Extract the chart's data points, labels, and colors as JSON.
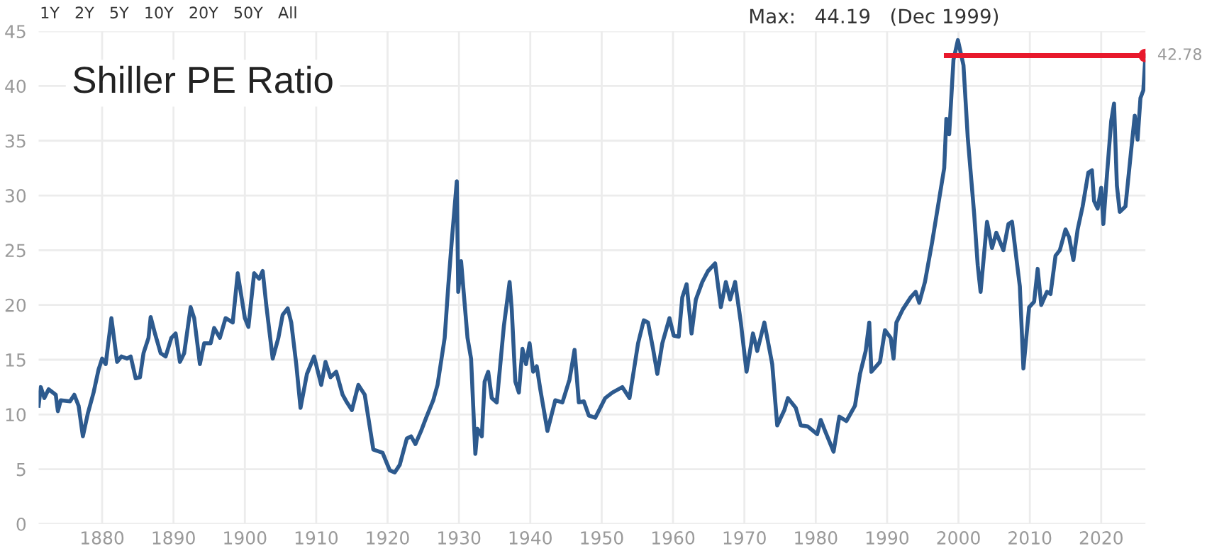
{
  "chart_data": {
    "type": "line",
    "title": "Shiller PE Ratio",
    "xlim": [
      1871.1,
      2026.2
    ],
    "xticks": [
      1880,
      1890,
      1900,
      1910,
      1920,
      1930,
      1940,
      1950,
      1960,
      1970,
      1980,
      1990,
      2000,
      2010,
      2020
    ],
    "ylim": [
      0,
      45
    ],
    "yticks": [
      0,
      5,
      10,
      15,
      20,
      25,
      30,
      35,
      40,
      45
    ],
    "grid": true,
    "legend": false,
    "marker": "none",
    "line_style": "solid",
    "series": [
      {
        "color": "#2d5a8e",
        "x": [
          1871.1,
          1871.4,
          1871.9,
          1872.5,
          1873.5,
          1873.8,
          1874.2,
          1875.5,
          1876.1,
          1876.7,
          1877.3,
          1878.0,
          1878.8,
          1879.5,
          1880.0,
          1880.5,
          1881.3,
          1882.1,
          1882.7,
          1883.5,
          1884.0,
          1884.7,
          1885.3,
          1885.8,
          1886.5,
          1886.8,
          1887.4,
          1888.2,
          1888.9,
          1889.7,
          1890.3,
          1890.9,
          1891.5,
          1892.4,
          1892.9,
          1893.7,
          1894.3,
          1895.2,
          1895.7,
          1896.5,
          1897.3,
          1898.3,
          1899.0,
          1900.0,
          1900.5,
          1901.3,
          1902.0,
          1902.5,
          1903.0,
          1903.9,
          1904.7,
          1905.3,
          1906.0,
          1906.5,
          1907.2,
          1907.8,
          1908.7,
          1909.7,
          1910.7,
          1911.3,
          1912.0,
          1912.8,
          1913.7,
          1914.3,
          1915.0,
          1915.9,
          1916.8,
          1918.0,
          1919.3,
          1920.3,
          1921.0,
          1921.7,
          1922.7,
          1923.3,
          1923.9,
          1924.7,
          1925.4,
          1926.4,
          1927.0,
          1928.0,
          1928.5,
          1929.0,
          1929.7,
          1929.9,
          1930.3,
          1931.2,
          1931.7,
          1932.3,
          1932.6,
          1933.2,
          1933.6,
          1934.1,
          1934.6,
          1935.3,
          1936.3,
          1937.1,
          1937.4,
          1937.9,
          1938.4,
          1938.9,
          1939.4,
          1939.9,
          1940.4,
          1940.9,
          1941.4,
          1942.4,
          1943.5,
          1944.5,
          1945.5,
          1946.2,
          1946.8,
          1947.5,
          1948.2,
          1949.1,
          1950.5,
          1951.5,
          1952.9,
          1953.9,
          1955.1,
          1955.9,
          1956.5,
          1957.2,
          1957.8,
          1958.5,
          1959.5,
          1960.1,
          1960.8,
          1961.3,
          1961.9,
          1962.6,
          1963.2,
          1964.1,
          1964.9,
          1965.9,
          1966.7,
          1967.4,
          1968.0,
          1968.7,
          1969.5,
          1970.3,
          1971.2,
          1971.8,
          1972.8,
          1973.9,
          1974.6,
          1975.6,
          1976.1,
          1977.2,
          1977.9,
          1978.9,
          1980.2,
          1980.7,
          1981.3,
          1982.5,
          1983.3,
          1984.3,
          1985.5,
          1986.2,
          1987.0,
          1987.5,
          1987.8,
          1989.0,
          1989.7,
          1990.5,
          1990.9,
          1991.3,
          1992.2,
          1993.3,
          1994.0,
          1994.5,
          1995.3,
          1996.3,
          1997.3,
          1998.0,
          1998.3,
          1998.7,
          1999.3,
          1999.92,
          2000.7,
          2001.3,
          2002.2,
          2002.7,
          2003.1,
          2004.0,
          2004.7,
          2005.3,
          2006.3,
          2007.0,
          2007.5,
          2008.2,
          2008.6,
          2009.1,
          2009.9,
          2010.6,
          2011.1,
          2011.6,
          2012.4,
          2012.9,
          2013.6,
          2014.2,
          2015.0,
          2015.5,
          2016.1,
          2016.7,
          2017.4,
          2018.2,
          2018.7,
          2019.0,
          2019.5,
          2020.0,
          2020.3,
          2020.8,
          2021.4,
          2021.8,
          2022.2,
          2022.6,
          2023.4,
          2024.1,
          2024.7,
          2025.1,
          2025.5,
          2025.9,
          2026.2
        ],
        "values": [
          10.8,
          12.5,
          11.5,
          12.3,
          11.8,
          10.3,
          11.3,
          11.2,
          11.8,
          10.8,
          8.0,
          10.1,
          12.0,
          14.1,
          15.1,
          14.6,
          18.8,
          14.8,
          15.3,
          15.1,
          15.3,
          13.3,
          13.4,
          15.6,
          17.0,
          18.9,
          17.4,
          15.6,
          15.3,
          17.0,
          17.4,
          14.8,
          15.6,
          19.8,
          18.8,
          14.6,
          16.5,
          16.5,
          17.9,
          17.0,
          18.8,
          18.4,
          22.9,
          18.8,
          18.0,
          22.9,
          22.4,
          23.1,
          20.0,
          15.1,
          17.0,
          19.1,
          19.7,
          18.4,
          14.6,
          10.6,
          13.7,
          15.3,
          12.7,
          14.8,
          13.4,
          13.9,
          11.8,
          11.1,
          10.4,
          12.7,
          11.8,
          6.8,
          6.5,
          4.9,
          4.7,
          5.4,
          7.8,
          8.0,
          7.3,
          8.5,
          9.7,
          11.3,
          12.7,
          17.0,
          21.7,
          25.9,
          31.3,
          21.2,
          24.0,
          17.0,
          15.1,
          6.4,
          8.7,
          8.0,
          13.0,
          13.9,
          11.5,
          11.1,
          18.1,
          22.1,
          19.6,
          13.0,
          12.0,
          16.0,
          14.6,
          16.5,
          13.9,
          14.4,
          12.3,
          8.5,
          11.3,
          11.1,
          13.2,
          15.9,
          11.1,
          11.2,
          9.9,
          9.7,
          11.5,
          12.0,
          12.5,
          11.5,
          16.5,
          18.6,
          18.4,
          16.0,
          13.7,
          16.5,
          18.8,
          17.2,
          17.1,
          20.7,
          21.9,
          17.4,
          20.5,
          22.1,
          23.1,
          23.8,
          19.8,
          22.1,
          20.5,
          22.1,
          18.4,
          13.9,
          17.4,
          15.8,
          18.4,
          14.6,
          9.0,
          10.4,
          11.5,
          10.6,
          9.0,
          8.9,
          8.2,
          9.5,
          8.5,
          6.6,
          9.8,
          9.4,
          10.8,
          13.7,
          15.8,
          18.4,
          13.9,
          14.8,
          17.7,
          17.0,
          15.1,
          18.4,
          19.6,
          20.7,
          21.2,
          20.2,
          22.1,
          25.7,
          29.7,
          32.5,
          37.0,
          35.6,
          42.4,
          44.19,
          41.9,
          35.3,
          28.3,
          23.6,
          21.2,
          27.6,
          25.2,
          26.6,
          25.0,
          27.4,
          27.6,
          23.8,
          21.7,
          14.2,
          19.8,
          20.3,
          23.3,
          20.0,
          21.2,
          21.0,
          24.5,
          25.0,
          26.9,
          26.2,
          24.1,
          26.9,
          29.0,
          32.1,
          32.3,
          29.5,
          28.8,
          30.7,
          27.4,
          31.8,
          36.8,
          38.4,
          30.9,
          28.5,
          29.0,
          33.5,
          37.3,
          35.1,
          38.9,
          39.6,
          42.78
        ]
      },
      {
        "color": "#e8192c",
        "x": [
          1998.3,
          2026.2
        ],
        "values": [
          42.78,
          42.78
        ],
        "marker": "circle"
      }
    ],
    "annotations": [
      "1Y   2Y   5Y   10Y   20Y   50Y   All",
      "Max:   44.19   (Dec 1999)",
      {
        "text": "42.78",
        "x": 2026.2,
        "y": 42.78
      }
    ]
  }
}
